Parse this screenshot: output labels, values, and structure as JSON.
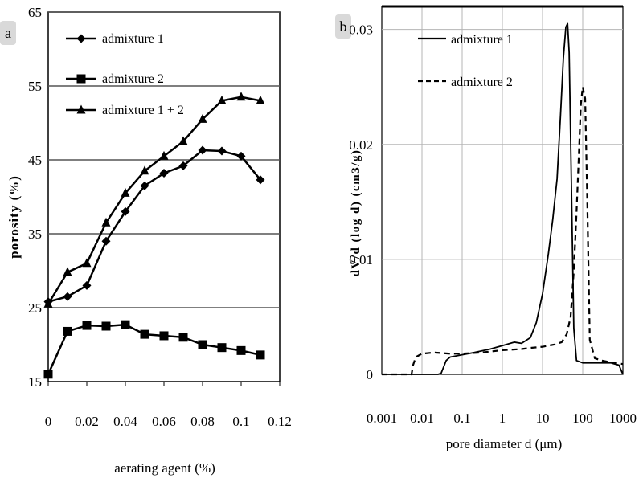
{
  "chart_data": [
    {
      "type": "line",
      "panel_label": "a",
      "xlabel": "aerating agent (%)",
      "ylabel": "porosity (%)",
      "xlim": [
        0,
        0.12
      ],
      "ylim": [
        15,
        65
      ],
      "xticks": [
        0,
        0.02,
        0.04,
        0.06,
        0.08,
        0.1,
        0.12
      ],
      "xtick_labels": [
        "0",
        "0.02",
        "0.04",
        "0.06",
        "0.08",
        "0.1",
        "0.12"
      ],
      "yticks": [
        15,
        25,
        35,
        45,
        55,
        65
      ],
      "ytick_labels": [
        "15",
        "25",
        "35",
        "45",
        "55",
        "65"
      ],
      "grid": "horizontal",
      "legend": "top-left",
      "series": [
        {
          "name": "admixture 1",
          "marker": "diamond",
          "dash": "solid",
          "x": [
            0,
            0.01,
            0.02,
            0.03,
            0.04,
            0.05,
            0.06,
            0.07,
            0.08,
            0.09,
            0.1,
            0.11
          ],
          "y": [
            25.8,
            26.5,
            28,
            34,
            38,
            41.5,
            43.2,
            44.2,
            46.3,
            46.2,
            45.5,
            42.3
          ]
        },
        {
          "name": "admixture 2",
          "marker": "square",
          "dash": "solid",
          "x": [
            0,
            0.01,
            0.02,
            0.03,
            0.04,
            0.05,
            0.06,
            0.07,
            0.08,
            0.09,
            0.1,
            0.11
          ],
          "y": [
            16,
            21.8,
            22.6,
            22.5,
            22.7,
            21.4,
            21.2,
            21,
            20,
            19.6,
            19.2,
            18.6
          ]
        },
        {
          "name": "admixture 1 + 2",
          "marker": "triangle",
          "dash": "solid",
          "x": [
            0,
            0.01,
            0.02,
            0.03,
            0.04,
            0.05,
            0.06,
            0.07,
            0.08,
            0.09,
            0.1,
            0.11
          ],
          "y": [
            25.5,
            29.8,
            31,
            36.5,
            40.5,
            43.5,
            45.5,
            47.5,
            50.5,
            53,
            53.5,
            53
          ]
        }
      ]
    },
    {
      "type": "line",
      "panel_label": "b",
      "xlabel": "pore diameter d (μm)",
      "ylabel": "dV/d (log d) (cm3/g)",
      "xscale": "log",
      "xlim": [
        0.001,
        1000
      ],
      "ylim": [
        0,
        0.032
      ],
      "xticks": [
        0.001,
        0.01,
        0.1,
        1,
        10,
        100,
        1000
      ],
      "xtick_labels": [
        "0.001",
        "0.01",
        "0.1",
        "1",
        "10",
        "100",
        "1000"
      ],
      "yticks": [
        0,
        0.01,
        0.02,
        0.03
      ],
      "ytick_labels": [
        "0",
        "0.01",
        "0.02",
        "0.03"
      ],
      "grid": "horizontal-and-vertical",
      "legend": "top-left",
      "series": [
        {
          "name": "admixture 1",
          "dash": "solid",
          "x": [
            0.001,
            0.01,
            0.025,
            0.03,
            0.04,
            0.05,
            0.1,
            0.2,
            0.5,
            1,
            2,
            3,
            5,
            7,
            10,
            14,
            18,
            23,
            28,
            33,
            38,
            42,
            46,
            52,
            60,
            70,
            100,
            200,
            500,
            800,
            1000
          ],
          "y": [
            0,
            0,
            0,
            0.0001,
            0.0012,
            0.0015,
            0.0017,
            0.0019,
            0.0022,
            0.0025,
            0.0028,
            0.0027,
            0.0032,
            0.0045,
            0.007,
            0.0105,
            0.0135,
            0.017,
            0.0225,
            0.0275,
            0.0302,
            0.0305,
            0.028,
            0.017,
            0.004,
            0.0012,
            0.001,
            0.001,
            0.001,
            0.0008,
            0
          ]
        },
        {
          "name": "admixture 2",
          "dash": "dashed",
          "x": [
            0.001,
            0.004,
            0.0055,
            0.006,
            0.007,
            0.01,
            0.02,
            0.05,
            0.1,
            0.3,
            1,
            3,
            5,
            10,
            20,
            30,
            40,
            50,
            60,
            70,
            80,
            90,
            100,
            115,
            130,
            150,
            200,
            300,
            600,
            1000
          ],
          "y": [
            0,
            0,
            0,
            0.0008,
            0.0015,
            0.0018,
            0.0019,
            0.0018,
            0.0018,
            0.0019,
            0.0021,
            0.0022,
            0.0023,
            0.0024,
            0.0026,
            0.0028,
            0.0035,
            0.005,
            0.009,
            0.014,
            0.019,
            0.0235,
            0.025,
            0.024,
            0.015,
            0.003,
            0.0014,
            0.0012,
            0.001,
            0.0009
          ]
        }
      ]
    }
  ]
}
